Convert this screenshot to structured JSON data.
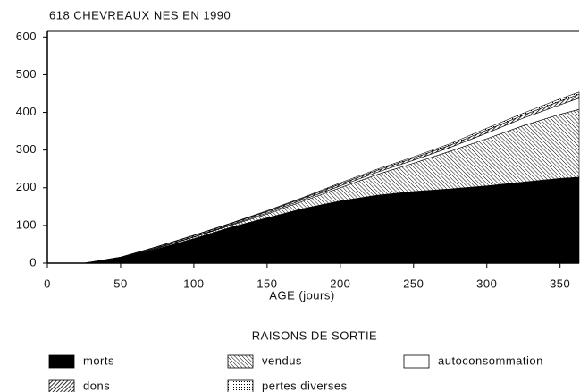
{
  "chart_data": {
    "type": "stacked-area",
    "title": "618 CHEVREAUX NES EN 1990",
    "xlabel": "AGE (jours)",
    "legend_title": "RAISONS DE SORTIE",
    "x": [
      0,
      25,
      50,
      75,
      100,
      125,
      150,
      175,
      200,
      225,
      250,
      275,
      300,
      325,
      350,
      363
    ],
    "series": [
      {
        "name": "morts",
        "color": "#000000",
        "pattern": "solid",
        "values": [
          0,
          0,
          14,
          38,
          65,
          95,
          120,
          145,
          165,
          180,
          190,
          197,
          205,
          215,
          225,
          228
        ]
      },
      {
        "name": "vendus",
        "color": "#000000",
        "pattern": "fine-hatch",
        "values": [
          0,
          0,
          1,
          2,
          4,
          5,
          10,
          20,
          35,
          55,
          75,
          100,
          125,
          150,
          170,
          180
        ]
      },
      {
        "name": "autoconsommation",
        "color": "#000000",
        "pattern": "none",
        "values": [
          0,
          0,
          0,
          1,
          1,
          2,
          3,
          4,
          5,
          6,
          8,
          10,
          15,
          20,
          25,
          30
        ]
      },
      {
        "name": "dons",
        "color": "#000000",
        "pattern": "diag-hatch",
        "values": [
          0,
          0,
          1,
          2,
          3,
          3,
          4,
          4,
          5,
          5,
          6,
          6,
          8,
          8,
          10,
          10
        ]
      },
      {
        "name": "pertes diverses",
        "color": "#000000",
        "pattern": "dots",
        "values": [
          0,
          0,
          0,
          1,
          1,
          1,
          2,
          2,
          3,
          3,
          3,
          4,
          5,
          5,
          6,
          6
        ]
      }
    ],
    "xlim": [
      0,
      363
    ],
    "xticks": [
      0,
      50,
      100,
      150,
      200,
      250,
      300,
      350
    ],
    "ylim": [
      0,
      615
    ],
    "yticks": [
      0,
      100,
      200,
      300,
      400,
      500,
      600
    ]
  }
}
